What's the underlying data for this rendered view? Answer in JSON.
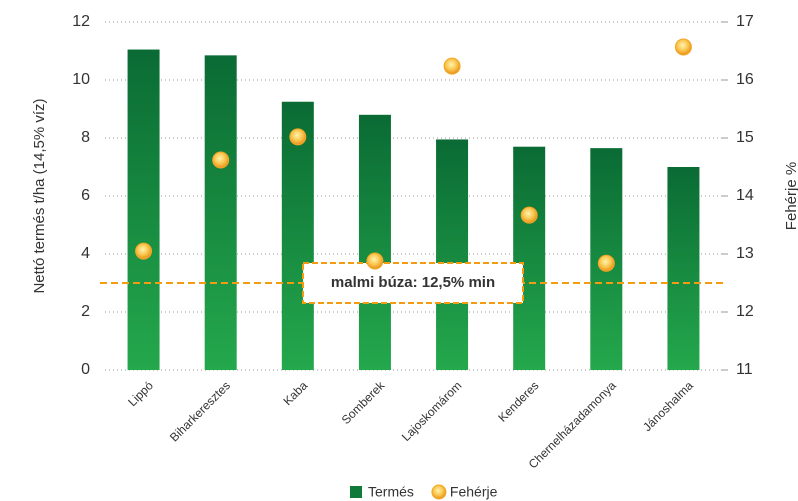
{
  "chart_data": {
    "type": "bar",
    "categories": [
      "Lippó",
      "Biharkeresztes",
      "Kaba",
      "Somberek",
      "Lajoskomárom",
      "Kenderes",
      "Chernelházadamonya",
      "Jánoshalma"
    ],
    "series": [
      {
        "name": "Termés",
        "type": "bar",
        "color": "#0f7a3a",
        "values": [
          11.05,
          10.85,
          9.25,
          8.8,
          7.95,
          7.7,
          7.65,
          7.0
        ]
      },
      {
        "name": "Fehérje",
        "type": "scatter",
        "axis": "y2",
        "color": "#f5a623",
        "values": [
          13.05,
          14.62,
          15.02,
          12.88,
          16.24,
          13.67,
          12.84,
          16.57
        ]
      }
    ],
    "ylabel": "Nettó termés t/ha (14,5% víz)",
    "y2label": "Fehérje %",
    "ylim": [
      0,
      12
    ],
    "yticks": [
      0,
      2,
      4,
      6,
      8,
      10,
      12
    ],
    "y2lim": [
      11,
      17
    ],
    "y2ticks": [
      11,
      12,
      13,
      14,
      15,
      16,
      17
    ],
    "reference_line": {
      "value": 12.5,
      "axis": "y2",
      "label": "malmi búza: 12,5% min",
      "color": "#f39c12"
    },
    "grid": true,
    "legend": "bottom"
  }
}
